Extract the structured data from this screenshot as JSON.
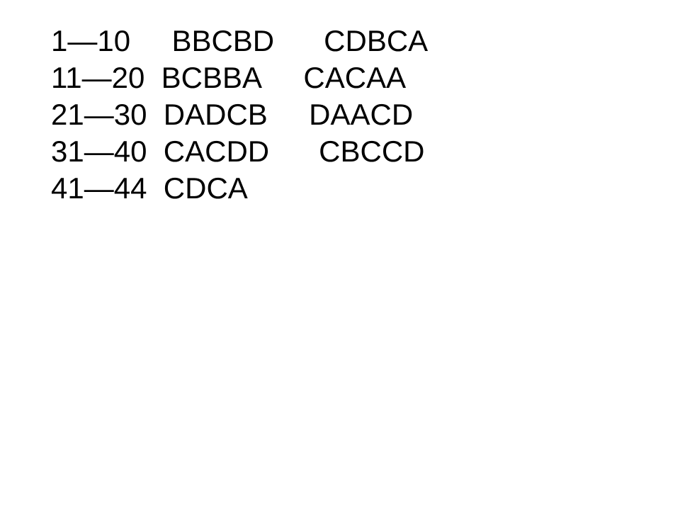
{
  "document": {
    "type": "answer-key",
    "font_family": "Arial",
    "font_size_pt": 32,
    "text_color": "#000000",
    "background_color": "#ffffff",
    "rows": [
      {
        "range": "1—10",
        "group1": "BBCBD",
        "group2": "CDBCA",
        "spacer1": "     ",
        "spacer2": "      "
      },
      {
        "range": "11—20",
        "group1": "BCBBA",
        "group2": "CACAA",
        "spacer1": "  ",
        "spacer2": "     "
      },
      {
        "range": "21—30",
        "group1": "DADCB",
        "group2": "DAACD",
        "spacer1": "  ",
        "spacer2": "     "
      },
      {
        "range": "31—40",
        "group1": "CACDD",
        "group2": "CBCCD",
        "spacer1": "  ",
        "spacer2": "      "
      },
      {
        "range": "41—44",
        "group1": "CDCA",
        "group2": "",
        "spacer1": "  ",
        "spacer2": ""
      }
    ]
  }
}
